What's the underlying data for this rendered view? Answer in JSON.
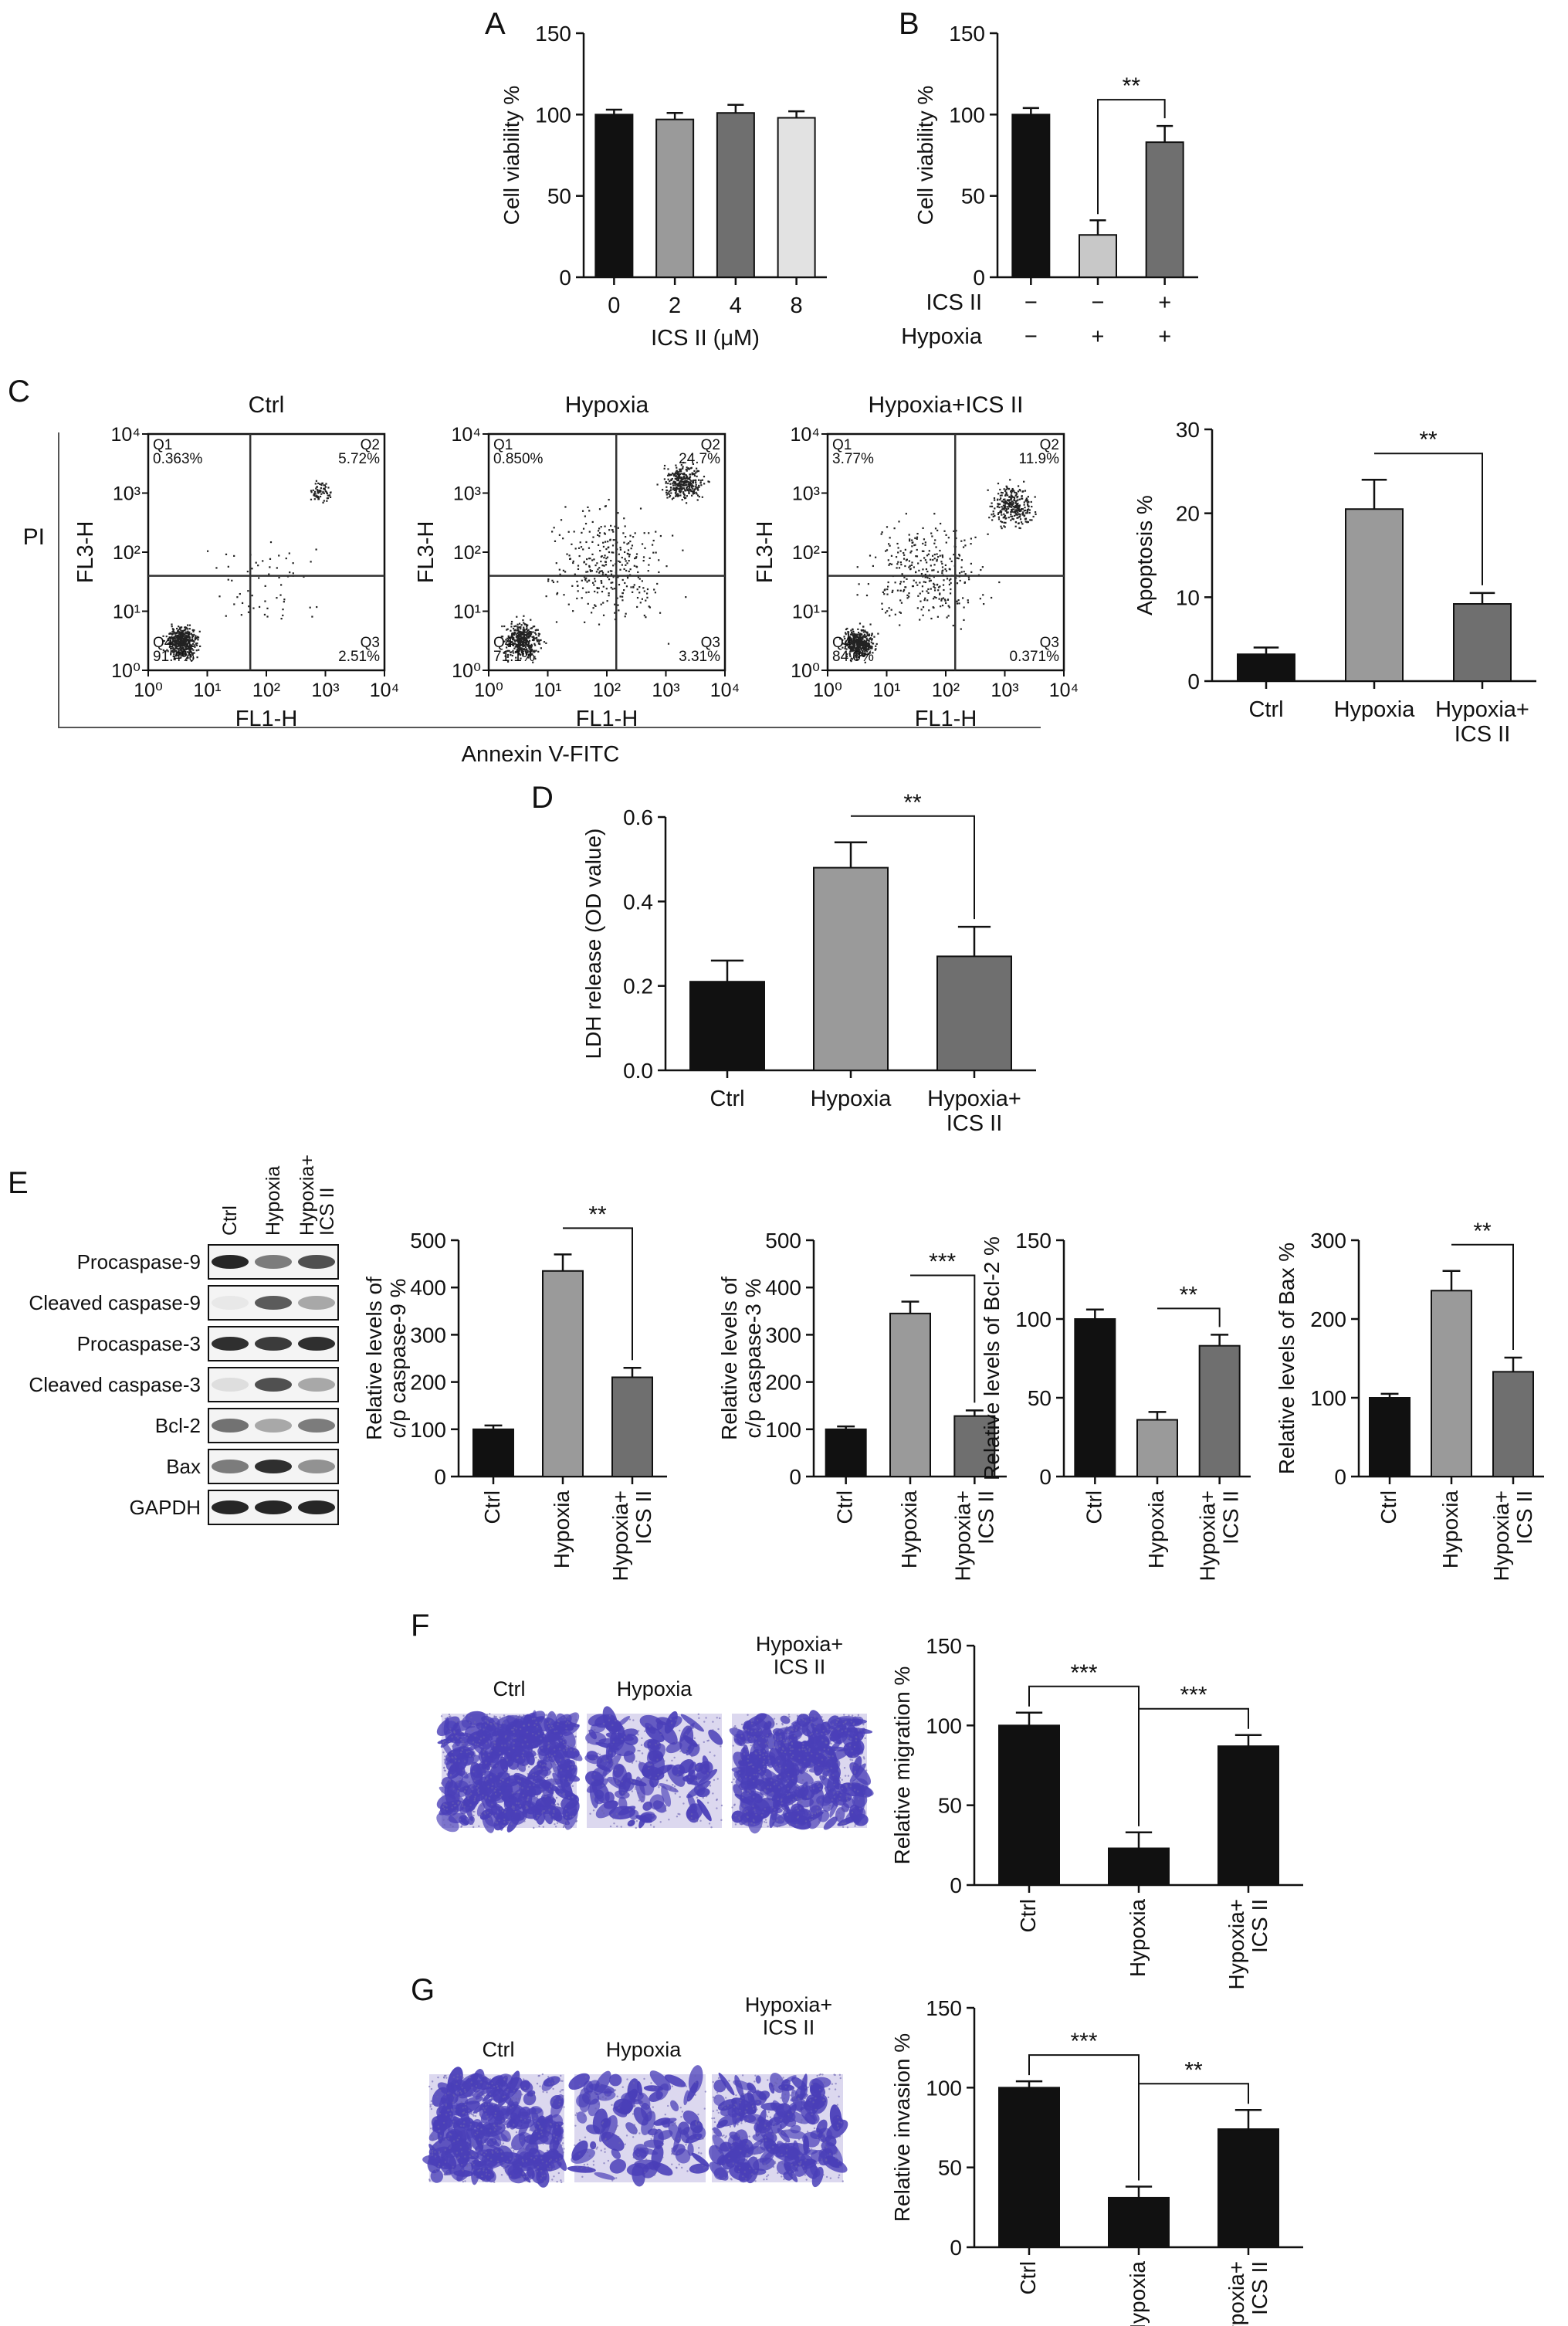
{
  "panel_labels": {
    "A": "A",
    "B": "B",
    "C": "C",
    "D": "D",
    "E": "E",
    "F": "F",
    "G": "G"
  },
  "colors": {
    "black": "#111111",
    "grey_dark": "#6f6f6f",
    "grey_mid": "#9a9a9a",
    "grey_light": "#c8c8c8",
    "grey_pale": "#e2e2e2",
    "blot": "#1a1a1a",
    "crystal_violet": "#4a3fb8"
  },
  "flow": {
    "titles": [
      "Ctrl",
      "Hypoxia",
      "Hypoxia+ICS II"
    ],
    "ylabel": "FL3-H",
    "xlabel": "FL1-H",
    "pi_label": "PI",
    "annexin_label": "Annexin V-FITC",
    "ticks": [
      "10⁰",
      "10¹",
      "10²",
      "10³",
      "10⁴"
    ],
    "plots": [
      {
        "q1": "Q1\n0.363%",
        "q2": "Q2\n5.72%",
        "q3": "Q3\n2.51%",
        "q4": "Q4\n91.4%"
      },
      {
        "q1": "Q1\n0.850%",
        "q2": "Q2\n24.7%",
        "q3": "Q3\n3.31%",
        "q4": "Q4\n71.1%"
      },
      {
        "q1": "Q1\n3.77%",
        "q2": "Q2\n11.9%",
        "q3": "Q3\n0.371%",
        "q4": "Q4\n84.0%"
      }
    ]
  },
  "blot": {
    "lane_labels": [
      "Ctrl",
      "Hypoxia",
      "Hypoxia+\nICS II"
    ],
    "rows": [
      "Procaspase-9",
      "Cleaved caspase-9",
      "Procaspase-3",
      "Cleaved caspase-3",
      "Bcl-2",
      "Bax",
      "GAPDH"
    ]
  },
  "images": {
    "F": [
      "Ctrl",
      "Hypoxia",
      "Hypoxia+\nICS II"
    ],
    "G": [
      "Ctrl",
      "Hypoxia",
      "Hypoxia+\nICS II"
    ]
  },
  "chart_data": [
    {
      "id": "A",
      "type": "bar",
      "categories": [
        "0",
        "2",
        "4",
        "8"
      ],
      "values": [
        100,
        97,
        101,
        98
      ],
      "errors": [
        3,
        4,
        5,
        4
      ],
      "ylabel": "Cell viability %",
      "xlabel": "ICS II (μM)",
      "ylim": [
        0,
        150
      ],
      "yticks": [
        0,
        50,
        100,
        150
      ],
      "colors": [
        "#111111",
        "#9a9a9a",
        "#6f6f6f",
        "#e2e2e2"
      ]
    },
    {
      "id": "B",
      "type": "bar",
      "categories": [
        "",
        "",
        ""
      ],
      "values": [
        100,
        26,
        83
      ],
      "errors": [
        4,
        9,
        10
      ],
      "ylabel": "Cell viability %",
      "ylim": [
        0,
        150
      ],
      "yticks": [
        0,
        50,
        100,
        150
      ],
      "colors": [
        "#111111",
        "#c8c8c8",
        "#6f6f6f"
      ],
      "condition_rows": [
        {
          "label": "ICS II",
          "marks": [
            "−",
            "−",
            "+"
          ]
        },
        {
          "label": "Hypoxia",
          "marks": [
            "−",
            "+",
            "+"
          ]
        }
      ],
      "sig": [
        {
          "from": 1,
          "to": 2,
          "text": "**"
        }
      ]
    },
    {
      "id": "C",
      "type": "bar",
      "categories": [
        "Ctrl",
        "Hypoxia",
        "Hypoxia+\nICS II"
      ],
      "values": [
        3.2,
        20.5,
        9.2
      ],
      "errors": [
        0.8,
        3.5,
        1.3
      ],
      "ylabel": "Apoptosis %",
      "ylim": [
        0,
        30
      ],
      "yticks": [
        0,
        10,
        20,
        30
      ],
      "colors": [
        "#111111",
        "#9a9a9a",
        "#6f6f6f"
      ],
      "sig": [
        {
          "from": 1,
          "to": 2,
          "text": "**"
        }
      ]
    },
    {
      "id": "D",
      "type": "bar",
      "categories": [
        "Ctrl",
        "Hypoxia",
        "Hypoxia+\nICS II"
      ],
      "values": [
        0.21,
        0.48,
        0.27
      ],
      "errors": [
        0.05,
        0.06,
        0.07
      ],
      "ylabel": "LDH release (OD value)",
      "ylim": [
        0,
        0.6
      ],
      "yticks": [
        0.0,
        0.2,
        0.4,
        0.6
      ],
      "ytick_labels": [
        "0.0",
        "0.2",
        "0.4",
        "0.6"
      ],
      "colors": [
        "#111111",
        "#9a9a9a",
        "#6f6f6f"
      ],
      "sig": [
        {
          "from": 1,
          "to": 2,
          "text": "**"
        }
      ]
    },
    {
      "id": "E1",
      "type": "bar",
      "categories": [
        "Ctrl",
        "Hypoxia",
        "Hypoxia+\nICS II"
      ],
      "values": [
        100,
        435,
        210
      ],
      "errors": [
        8,
        35,
        20
      ],
      "ylabel": "Relative levels of\nc/p caspase-9 %",
      "ylim": [
        0,
        500
      ],
      "yticks": [
        0,
        100,
        200,
        300,
        400,
        500
      ],
      "colors": [
        "#111111",
        "#9a9a9a",
        "#6f6f6f"
      ],
      "sig": [
        {
          "from": 1,
          "to": 2,
          "text": "**"
        }
      ]
    },
    {
      "id": "E2",
      "type": "bar",
      "categories": [
        "Ctrl",
        "Hypoxia",
        "Hypoxia+\nICS II"
      ],
      "values": [
        100,
        345,
        128
      ],
      "errors": [
        6,
        25,
        12
      ],
      "ylabel": "Relative levels of\nc/p caspase-3 %",
      "ylim": [
        0,
        500
      ],
      "yticks": [
        0,
        100,
        200,
        300,
        400,
        500
      ],
      "colors": [
        "#111111",
        "#9a9a9a",
        "#6f6f6f"
      ],
      "sig": [
        {
          "from": 1,
          "to": 2,
          "text": "***"
        }
      ]
    },
    {
      "id": "E3",
      "type": "bar",
      "categories": [
        "Ctrl",
        "Hypoxia",
        "Hypoxia+\nICS II"
      ],
      "values": [
        100,
        36,
        83
      ],
      "errors": [
        6,
        5,
        7
      ],
      "ylabel": "Relative levels of Bcl-2 %",
      "ylim": [
        0,
        150
      ],
      "yticks": [
        0,
        50,
        100,
        150
      ],
      "colors": [
        "#111111",
        "#9a9a9a",
        "#6f6f6f"
      ],
      "sig": [
        {
          "from": 1,
          "to": 2,
          "text": "**"
        }
      ]
    },
    {
      "id": "E4",
      "type": "bar",
      "categories": [
        "Ctrl",
        "Hypoxia",
        "Hypoxia+\nICS II"
      ],
      "values": [
        100,
        236,
        133
      ],
      "errors": [
        5,
        25,
        18
      ],
      "ylabel": "Relative levels of Bax %",
      "ylim": [
        0,
        300
      ],
      "yticks": [
        0,
        100,
        200,
        300
      ],
      "colors": [
        "#111111",
        "#9a9a9a",
        "#6f6f6f"
      ],
      "sig": [
        {
          "from": 1,
          "to": 2,
          "text": "**"
        }
      ]
    },
    {
      "id": "F",
      "type": "bar",
      "categories": [
        "Ctrl",
        "Hypoxia",
        "Hypoxia+\nICS II"
      ],
      "values": [
        100,
        23,
        87
      ],
      "errors": [
        8,
        10,
        7
      ],
      "ylabel": "Relative migration %",
      "ylim": [
        0,
        150
      ],
      "yticks": [
        0,
        50,
        100,
        150
      ],
      "colors": [
        "#111111",
        "#111111",
        "#111111"
      ],
      "sig": [
        {
          "from": 0,
          "to": 1,
          "text": "***"
        },
        {
          "from": 1,
          "to": 2,
          "text": "***"
        }
      ]
    },
    {
      "id": "G",
      "type": "bar",
      "categories": [
        "Ctrl",
        "Hypoxia",
        "Hypoxia+\nICS II"
      ],
      "values": [
        100,
        31,
        74
      ],
      "errors": [
        4,
        7,
        12
      ],
      "ylabel": "Relative invasion %",
      "ylim": [
        0,
        150
      ],
      "yticks": [
        0,
        50,
        100,
        150
      ],
      "colors": [
        "#111111",
        "#111111",
        "#111111"
      ],
      "sig": [
        {
          "from": 0,
          "to": 1,
          "text": "***"
        },
        {
          "from": 1,
          "to": 2,
          "text": "**"
        }
      ]
    }
  ]
}
